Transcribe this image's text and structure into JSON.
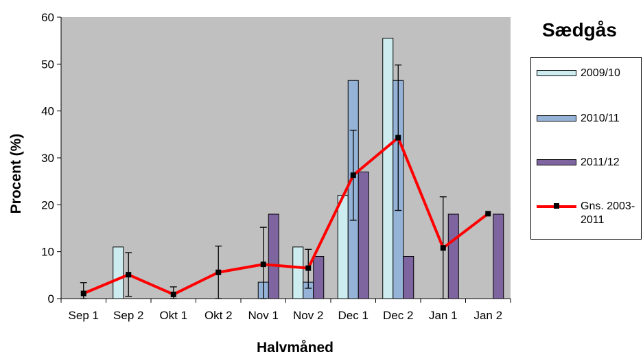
{
  "chart_data": {
    "type": "bar",
    "title": "Sædgås",
    "xlabel": "Halvmåned",
    "ylabel": "Procent (%)",
    "ylim": [
      0,
      60
    ],
    "yticks": [
      0,
      10,
      20,
      30,
      40,
      50,
      60
    ],
    "grid": false,
    "legend_position": "right",
    "categories": [
      "Sep 1",
      "Sep 2",
      "Okt 1",
      "Okt 2",
      "Nov 1",
      "Nov 2",
      "Dec 1",
      "Dec 2",
      "Jan 1",
      "Jan 2"
    ],
    "series": [
      {
        "name": "2009/10",
        "type": "bar",
        "color": "#ccecf0",
        "values": [
          0,
          11,
          0,
          0,
          0,
          11,
          22,
          55.5,
          0,
          0
        ]
      },
      {
        "name": "2010/11",
        "type": "bar",
        "color": "#95b3d7",
        "values": [
          0,
          0,
          0,
          0,
          3.5,
          3.5,
          46.5,
          46.5,
          0,
          0
        ]
      },
      {
        "name": "2011/12",
        "type": "bar",
        "color": "#7f659f",
        "values": [
          0,
          0,
          0,
          0,
          18,
          9,
          27,
          9,
          18,
          18
        ]
      },
      {
        "name": "Gns. 2003-2011",
        "type": "line",
        "color": "#ff0000",
        "values": [
          1.1,
          5.1,
          0.9,
          5.6,
          7.3,
          6.5,
          26.3,
          34.3,
          10.8,
          18.1
        ],
        "error_low": [
          0,
          0.5,
          0,
          0,
          0,
          2.2,
          16.7,
          18.8,
          0,
          18.1
        ],
        "error_high": [
          3.4,
          9.8,
          2.5,
          11.2,
          15.2,
          10.5,
          35.9,
          49.8,
          21.7,
          18.1
        ]
      }
    ],
    "legend_labels": [
      "2009/10",
      "2010/11",
      "2011/12",
      "Gns. 2003-\n2011"
    ],
    "colors": {
      "plot_background": "#c0c0c0"
    }
  }
}
